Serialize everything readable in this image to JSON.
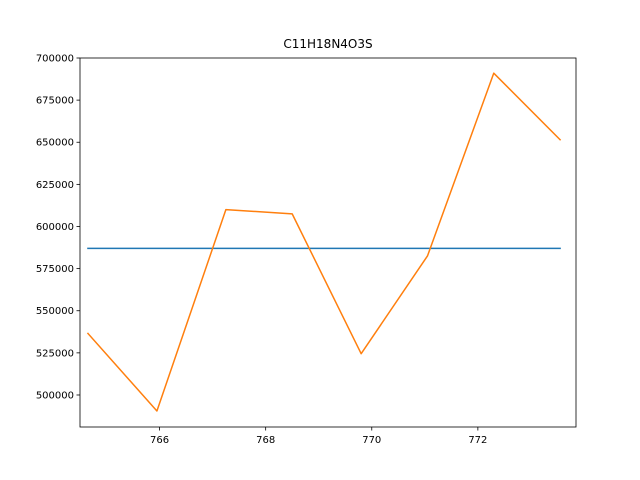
{
  "chart_data": {
    "type": "line",
    "title": "C11H18N4O3S",
    "xlabel": "",
    "ylabel": "",
    "xlim": [
      764.5,
      773.85
    ],
    "ylim": [
      481000,
      700000
    ],
    "grid": false,
    "x_ticks": [
      766,
      768,
      770,
      772
    ],
    "y_ticks": [
      500000,
      525000,
      550000,
      575000,
      600000,
      625000,
      650000,
      675000,
      700000
    ],
    "series": [
      {
        "color": "#1f77b4",
        "x": [
          764.65,
          773.55
        ],
        "y": [
          587000,
          587000
        ]
      },
      {
        "color": "#ff7f0e",
        "x": [
          764.65,
          765.95,
          767.25,
          768.5,
          769.8,
          771.05,
          772.3,
          773.55
        ],
        "y": [
          536500,
          490500,
          610000,
          607500,
          524500,
          582500,
          691000,
          651500
        ]
      }
    ]
  }
}
